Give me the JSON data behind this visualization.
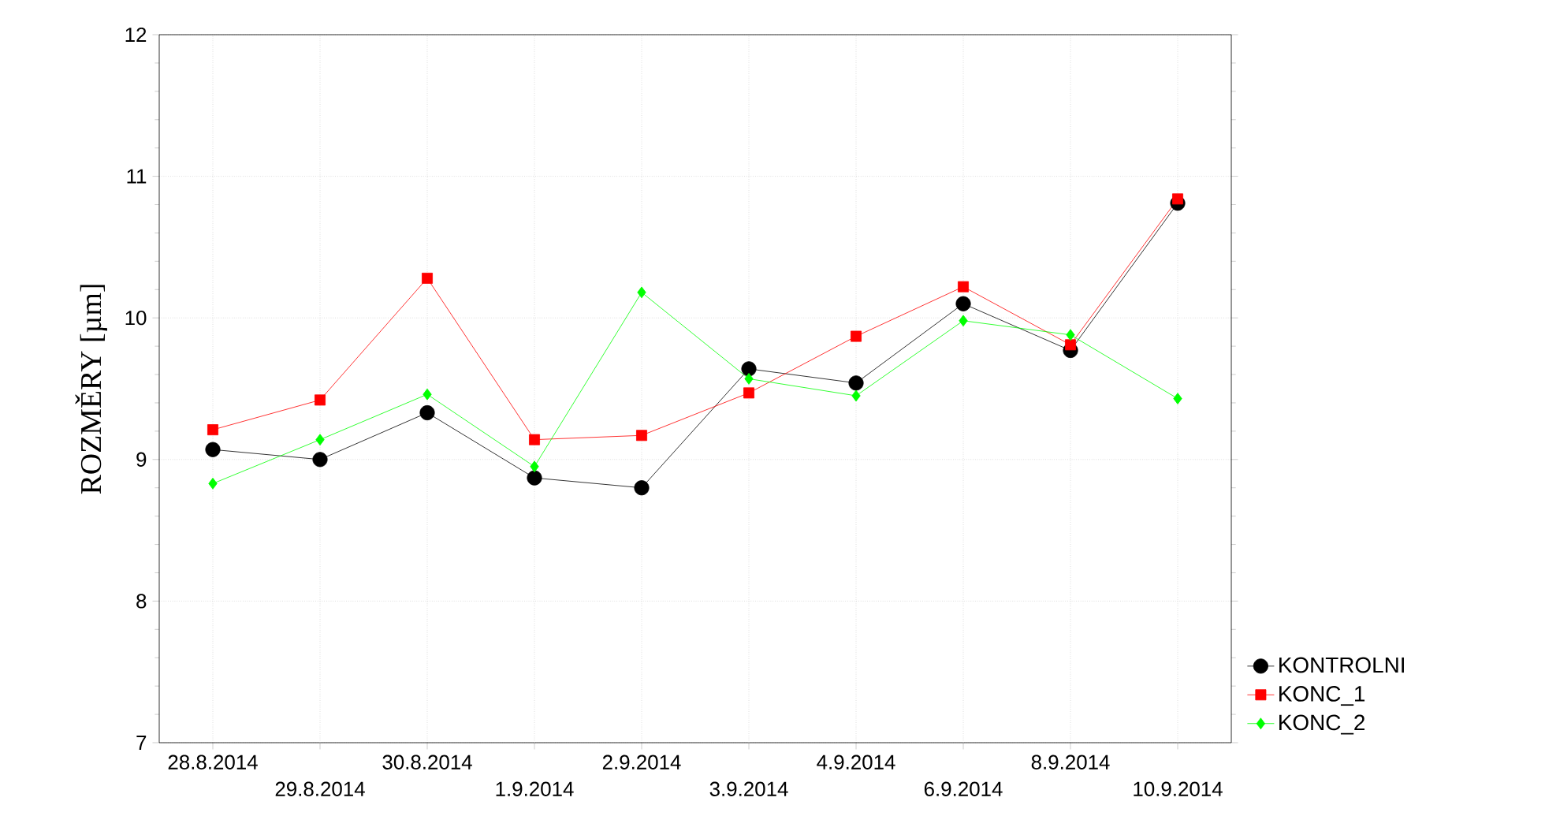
{
  "chart_data": {
    "type": "line",
    "ylabel": "ROZMĚRY [µm]",
    "categories": [
      "28.8.2014",
      "29.8.2014",
      "30.8.2014",
      "1.9.2014",
      "2.9.2014",
      "3.9.2014",
      "4.9.2014",
      "6.9.2014",
      "8.9.2014",
      "10.9.2014"
    ],
    "series": [
      {
        "name": "KONTROLNI",
        "color": "#000000",
        "marker": "circle",
        "values": [
          9.07,
          9.0,
          9.33,
          8.87,
          8.8,
          9.64,
          9.54,
          10.1,
          9.77,
          10.81
        ]
      },
      {
        "name": "KONC_1",
        "color": "#ff0000",
        "marker": "square",
        "values": [
          9.21,
          9.42,
          10.28,
          9.14,
          9.17,
          9.47,
          9.87,
          10.22,
          9.81,
          10.84
        ]
      },
      {
        "name": "KONC_2",
        "color": "#00ff00",
        "marker": "diamond",
        "values": [
          8.83,
          9.14,
          9.46,
          8.95,
          10.18,
          9.57,
          9.45,
          9.98,
          9.88,
          9.43
        ]
      }
    ],
    "ylim": [
      7,
      12
    ],
    "yticks": [
      7,
      8,
      9,
      10,
      11,
      12
    ],
    "grid": true,
    "legend": "bottom right",
    "line_style": "solid"
  }
}
